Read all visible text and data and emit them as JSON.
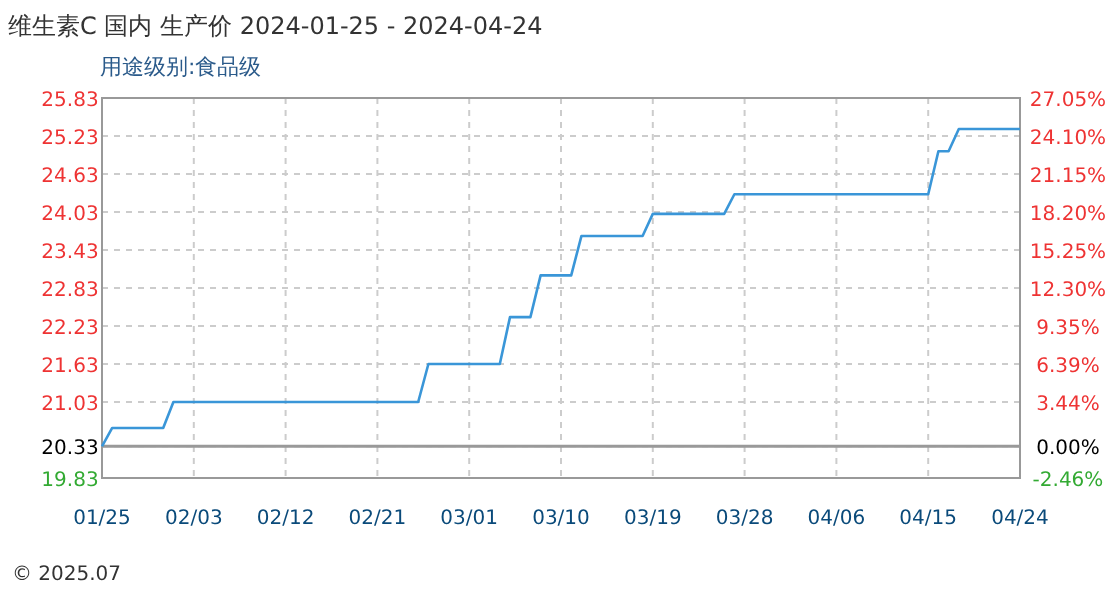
{
  "chart_data": {
    "type": "line",
    "title": "维生素C 国内 生产价 2024-01-25 - 2024-04-24",
    "subtitle": "用途级别:食品级",
    "annotations": [
      "© 2025.07"
    ],
    "series": [
      {
        "color": "#3a96d8",
        "x": [
          "2024-01-25",
          "2024-01-26",
          "2024-01-31",
          "2024-02-01",
          "2024-02-25",
          "2024-02-26",
          "2024-03-04",
          "2024-03-05",
          "2024-03-07",
          "2024-03-08",
          "2024-03-11",
          "2024-03-12",
          "2024-03-18",
          "2024-03-19",
          "2024-03-26",
          "2024-03-27",
          "2024-04-15",
          "2024-04-16",
          "2024-04-17",
          "2024-04-18",
          "2024-04-24"
        ],
        "values": [
          20.33,
          20.62,
          20.62,
          21.03,
          21.03,
          21.63,
          21.63,
          22.37,
          22.37,
          23.03,
          23.03,
          23.65,
          23.65,
          24.0,
          24.0,
          24.31,
          24.31,
          24.99,
          24.99,
          25.34,
          25.34
        ]
      }
    ],
    "xlim": [
      "2024-01-25",
      "2024-04-24"
    ],
    "xticks": [
      {
        "value": "2024-01-25",
        "label": "01/25"
      },
      {
        "value": "2024-02-03",
        "label": "02/03"
      },
      {
        "value": "2024-02-12",
        "label": "02/12"
      },
      {
        "value": "2024-02-21",
        "label": "02/21"
      },
      {
        "value": "2024-03-01",
        "label": "03/01"
      },
      {
        "value": "2024-03-10",
        "label": "03/10"
      },
      {
        "value": "2024-03-19",
        "label": "03/19"
      },
      {
        "value": "2024-03-28",
        "label": "03/28"
      },
      {
        "value": "2024-04-06",
        "label": "04/06"
      },
      {
        "value": "2024-04-15",
        "label": "04/15"
      },
      {
        "value": "2024-04-24",
        "label": "04/24"
      }
    ],
    "ylim": [
      19.83,
      25.83
    ],
    "yticks": [
      {
        "value": 19.83,
        "label": "19.83"
      },
      {
        "value": 20.33,
        "label": "20.33"
      },
      {
        "value": 21.03,
        "label": "21.03"
      },
      {
        "value": 21.63,
        "label": "21.63"
      },
      {
        "value": 22.23,
        "label": "22.23"
      },
      {
        "value": 22.83,
        "label": "22.83"
      },
      {
        "value": 23.43,
        "label": "23.43"
      },
      {
        "value": 24.03,
        "label": "24.03"
      },
      {
        "value": 24.63,
        "label": "24.63"
      },
      {
        "value": 25.23,
        "label": "25.23"
      },
      {
        "value": 25.83,
        "label": "25.83"
      }
    ],
    "y2lim": [
      -2.46,
      27.05
    ],
    "y2ticks": [
      {
        "value": -2.46,
        "label": "-2.46%"
      },
      {
        "value": 0,
        "label": "0.00%"
      },
      {
        "value": 3.44,
        "label": "3.44%"
      },
      {
        "value": 6.39,
        "label": "6.39%"
      },
      {
        "value": 9.35,
        "label": "9.35%"
      },
      {
        "value": 12.3,
        "label": "12.30%"
      },
      {
        "value": 15.25,
        "label": "15.25%"
      },
      {
        "value": 18.2,
        "label": "18.20%"
      },
      {
        "value": 21.15,
        "label": "21.15%"
      },
      {
        "value": 24.1,
        "label": "24.10%"
      },
      {
        "value": 27.05,
        "label": "27.05%"
      }
    ],
    "ref_lines": [
      {
        "axis": "y",
        "value": 20.33,
        "color": "#999999"
      }
    ],
    "grid": true,
    "marker": "none",
    "line_style": "solid"
  }
}
